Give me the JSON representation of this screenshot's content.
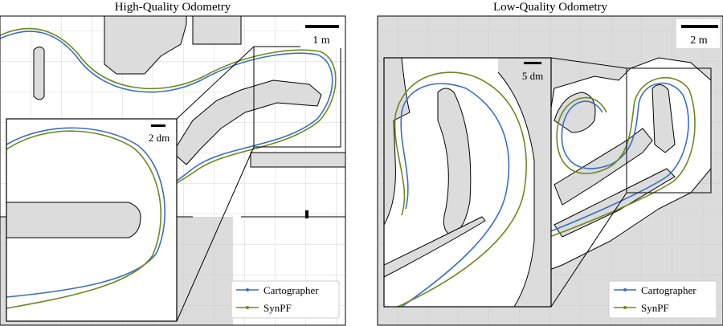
{
  "panels": [
    {
      "title": "High-Quality Odometry",
      "scale_main": "1 m",
      "scale_inset": "2 dm"
    },
    {
      "title": "Low-Quality Odometry",
      "scale_main": "2 m",
      "scale_inset": "5 dm"
    }
  ],
  "legend": [
    {
      "label": "Cartographer",
      "color": "#3a6fc4"
    },
    {
      "label": "SynPF",
      "color": "#6b8a1e"
    }
  ],
  "colors": {
    "obstacle": "#dcdcdc",
    "grid": "#c8c8c8",
    "free": "#ffffff"
  }
}
